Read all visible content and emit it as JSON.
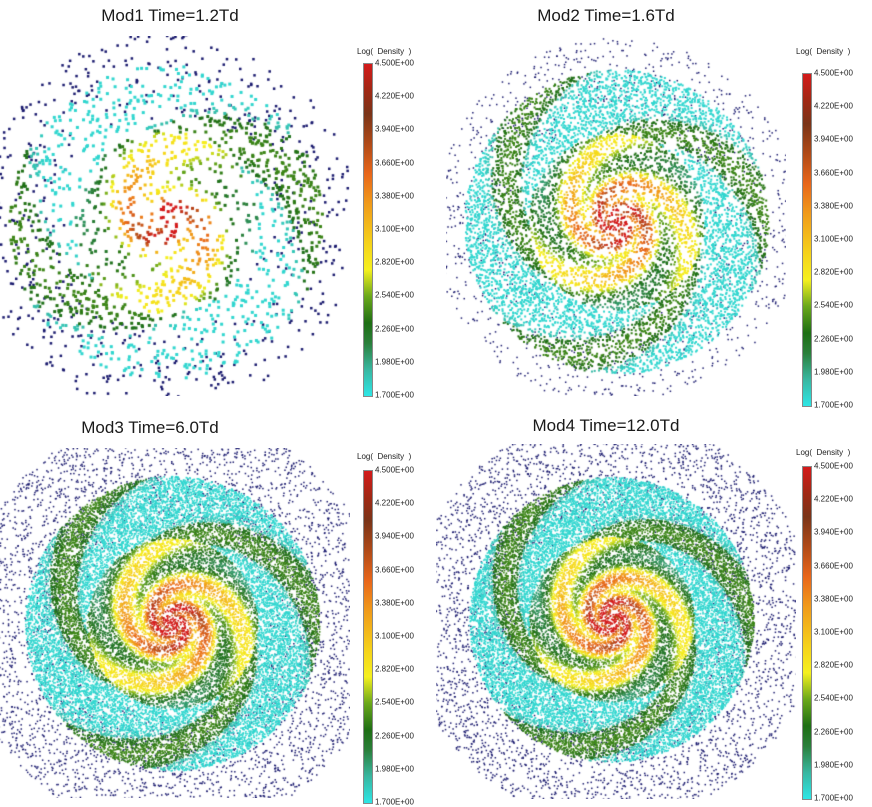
{
  "figure": {
    "panels": [
      {
        "id": "mod1",
        "title": "Mod1 Time=1.2Td",
        "colorbar_label": "Log(  Density  )",
        "ticks": [
          "4.500E+00",
          "4.220E+00",
          "3.940E+00",
          "3.660E+00",
          "3.380E+00",
          "3.100E+00",
          "2.820E+00",
          "2.540E+00",
          "2.260E+00",
          "1.980E+00",
          "1.700E+00"
        ],
        "style": "sparse"
      },
      {
        "id": "mod2",
        "title": "Mod2 Time=1.6Td",
        "colorbar_label": "Log(  Density  )",
        "ticks": [
          "4.500E+00",
          "4.220E+00",
          "3.940E+00",
          "3.660E+00",
          "3.380E+00",
          "3.100E+00",
          "2.820E+00",
          "2.540E+00",
          "2.260E+00",
          "1.980E+00",
          "1.700E+00"
        ],
        "style": "medium"
      },
      {
        "id": "mod3",
        "title": "Mod3 Time=6.0Td",
        "colorbar_label": "Log(  Density  )",
        "ticks": [
          "4.500E+00",
          "4.220E+00",
          "3.940E+00",
          "3.660E+00",
          "3.380E+00",
          "3.100E+00",
          "2.820E+00",
          "2.540E+00",
          "2.260E+00",
          "1.980E+00",
          "1.700E+00"
        ],
        "style": "dense"
      },
      {
        "id": "mod4",
        "title": "Mod4 Time=12.0Td",
        "colorbar_label": "Log(  Density  )",
        "ticks": [
          "4.500E+00",
          "4.220E+00",
          "3.940E+00",
          "3.660E+00",
          "3.380E+00",
          "3.100E+00",
          "2.820E+00",
          "2.540E+00",
          "2.260E+00",
          "1.980E+00",
          "1.700E+00"
        ],
        "style": "dense"
      }
    ],
    "colors": {
      "halo": "#1a1a6e",
      "cyan": "#3fd0d0",
      "green": "#1f6a1e",
      "yellow": "#f0e020",
      "orange": "#f08a1a",
      "red": "#d42a1a"
    }
  }
}
